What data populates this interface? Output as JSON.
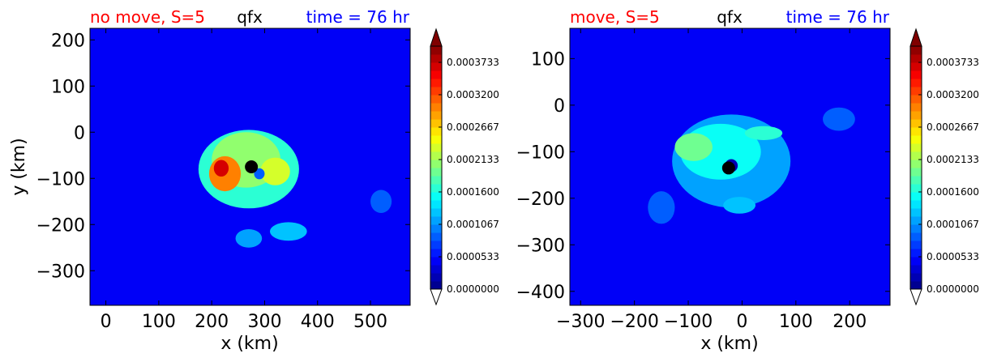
{
  "chart_data": [
    {
      "type": "heatmap",
      "title_left": "no move, S=5",
      "title_center": "qfx",
      "title_right": "time = 76 hr",
      "xlabel": "x (km)",
      "ylabel": "y (km)",
      "xlim": [
        -30,
        575
      ],
      "ylim": [
        -375,
        225
      ],
      "xticks": [
        0,
        100,
        200,
        300,
        400,
        500
      ],
      "xtick_labels": [
        "0",
        "100",
        "200",
        "300",
        "400",
        "500"
      ],
      "yticks": [
        -300,
        -200,
        -100,
        0,
        100,
        200
      ],
      "ytick_labels": [
        "−300",
        "−200",
        "−100",
        "0",
        "100",
        "200"
      ],
      "marker": {
        "x": 275,
        "y": -75
      },
      "features": [
        {
          "kind": "background",
          "value": 5e-05
        },
        {
          "kind": "blob",
          "x": 270,
          "y": -80,
          "rx": 95,
          "ry": 85,
          "value": 0.00016
        },
        {
          "kind": "blob",
          "x": 265,
          "y": -60,
          "rx": 65,
          "ry": 60,
          "value": 0.0002
        },
        {
          "kind": "blob",
          "x": 320,
          "y": -85,
          "rx": 28,
          "ry": 30,
          "value": 0.00023
        },
        {
          "kind": "blob",
          "x": 225,
          "y": -90,
          "rx": 30,
          "ry": 38,
          "value": 0.0003
        },
        {
          "kind": "blob",
          "x": 218,
          "y": -78,
          "rx": 14,
          "ry": 18,
          "value": 0.00037
        },
        {
          "kind": "blob",
          "x": 290,
          "y": -90,
          "rx": 10,
          "ry": 12,
          "value": 9e-05
        },
        {
          "kind": "blob",
          "x": 345,
          "y": -215,
          "rx": 35,
          "ry": 20,
          "value": 0.00012
        },
        {
          "kind": "blob",
          "x": 270,
          "y": -230,
          "rx": 25,
          "ry": 20,
          "value": 0.00011
        },
        {
          "kind": "blob",
          "x": 520,
          "y": -150,
          "rx": 20,
          "ry": 25,
          "value": 8e-05
        }
      ]
    },
    {
      "type": "heatmap",
      "title_left": "move, S=5",
      "title_center": "qfx",
      "title_right": "time = 76 hr",
      "xlabel": "x (km)",
      "ylabel": "",
      "xlim": [
        -320,
        275
      ],
      "ylim": [
        -430,
        165
      ],
      "xticks": [
        -300,
        -200,
        -100,
        0,
        100,
        200
      ],
      "xtick_labels": [
        "−300",
        "−200",
        "−100",
        "0",
        "100",
        "200"
      ],
      "yticks": [
        -400,
        -300,
        -200,
        -100,
        0,
        100
      ],
      "ytick_labels": [
        "−400",
        "−300",
        "−200",
        "−100",
        "0",
        "100"
      ],
      "marker": {
        "x": -25,
        "y": -135
      },
      "features": [
        {
          "kind": "background",
          "value": 4e-05
        },
        {
          "kind": "blob",
          "x": -20,
          "y": -120,
          "rx": 110,
          "ry": 100,
          "value": 0.00011
        },
        {
          "kind": "blob",
          "x": -40,
          "y": -100,
          "rx": 75,
          "ry": 60,
          "value": 0.00015
        },
        {
          "kind": "blob",
          "x": -90,
          "y": -90,
          "rx": 35,
          "ry": 30,
          "value": 0.00019
        },
        {
          "kind": "blob",
          "x": 40,
          "y": -60,
          "rx": 35,
          "ry": 15,
          "value": 0.00016
        },
        {
          "kind": "blob",
          "x": -5,
          "y": -215,
          "rx": 30,
          "ry": 18,
          "value": 0.00013
        },
        {
          "kind": "blob",
          "x": -150,
          "y": -220,
          "rx": 25,
          "ry": 35,
          "value": 9e-05
        },
        {
          "kind": "blob",
          "x": -20,
          "y": -130,
          "rx": 12,
          "ry": 14,
          "value": 2e-05
        },
        {
          "kind": "blob",
          "x": 180,
          "y": -30,
          "rx": 30,
          "ry": 25,
          "value": 9e-05
        }
      ]
    }
  ],
  "colorbar": {
    "min": 0.0,
    "max": 0.0004,
    "levels": 30,
    "tick_values": [
      0.0,
      5.33e-05,
      0.0001067,
      0.00016,
      0.0002133,
      0.0002667,
      0.00032,
      0.0003733
    ],
    "tick_labels": [
      "0.0000000",
      "0.0000533",
      "0.0001067",
      "0.0001600",
      "0.0002133",
      "0.0002667",
      "0.0003200",
      "0.0003733"
    ],
    "extend": "both"
  },
  "colors": {
    "title_left": "#ff0000",
    "title_center": "#000000",
    "title_right": "#0000ff",
    "marker": "#000000"
  }
}
